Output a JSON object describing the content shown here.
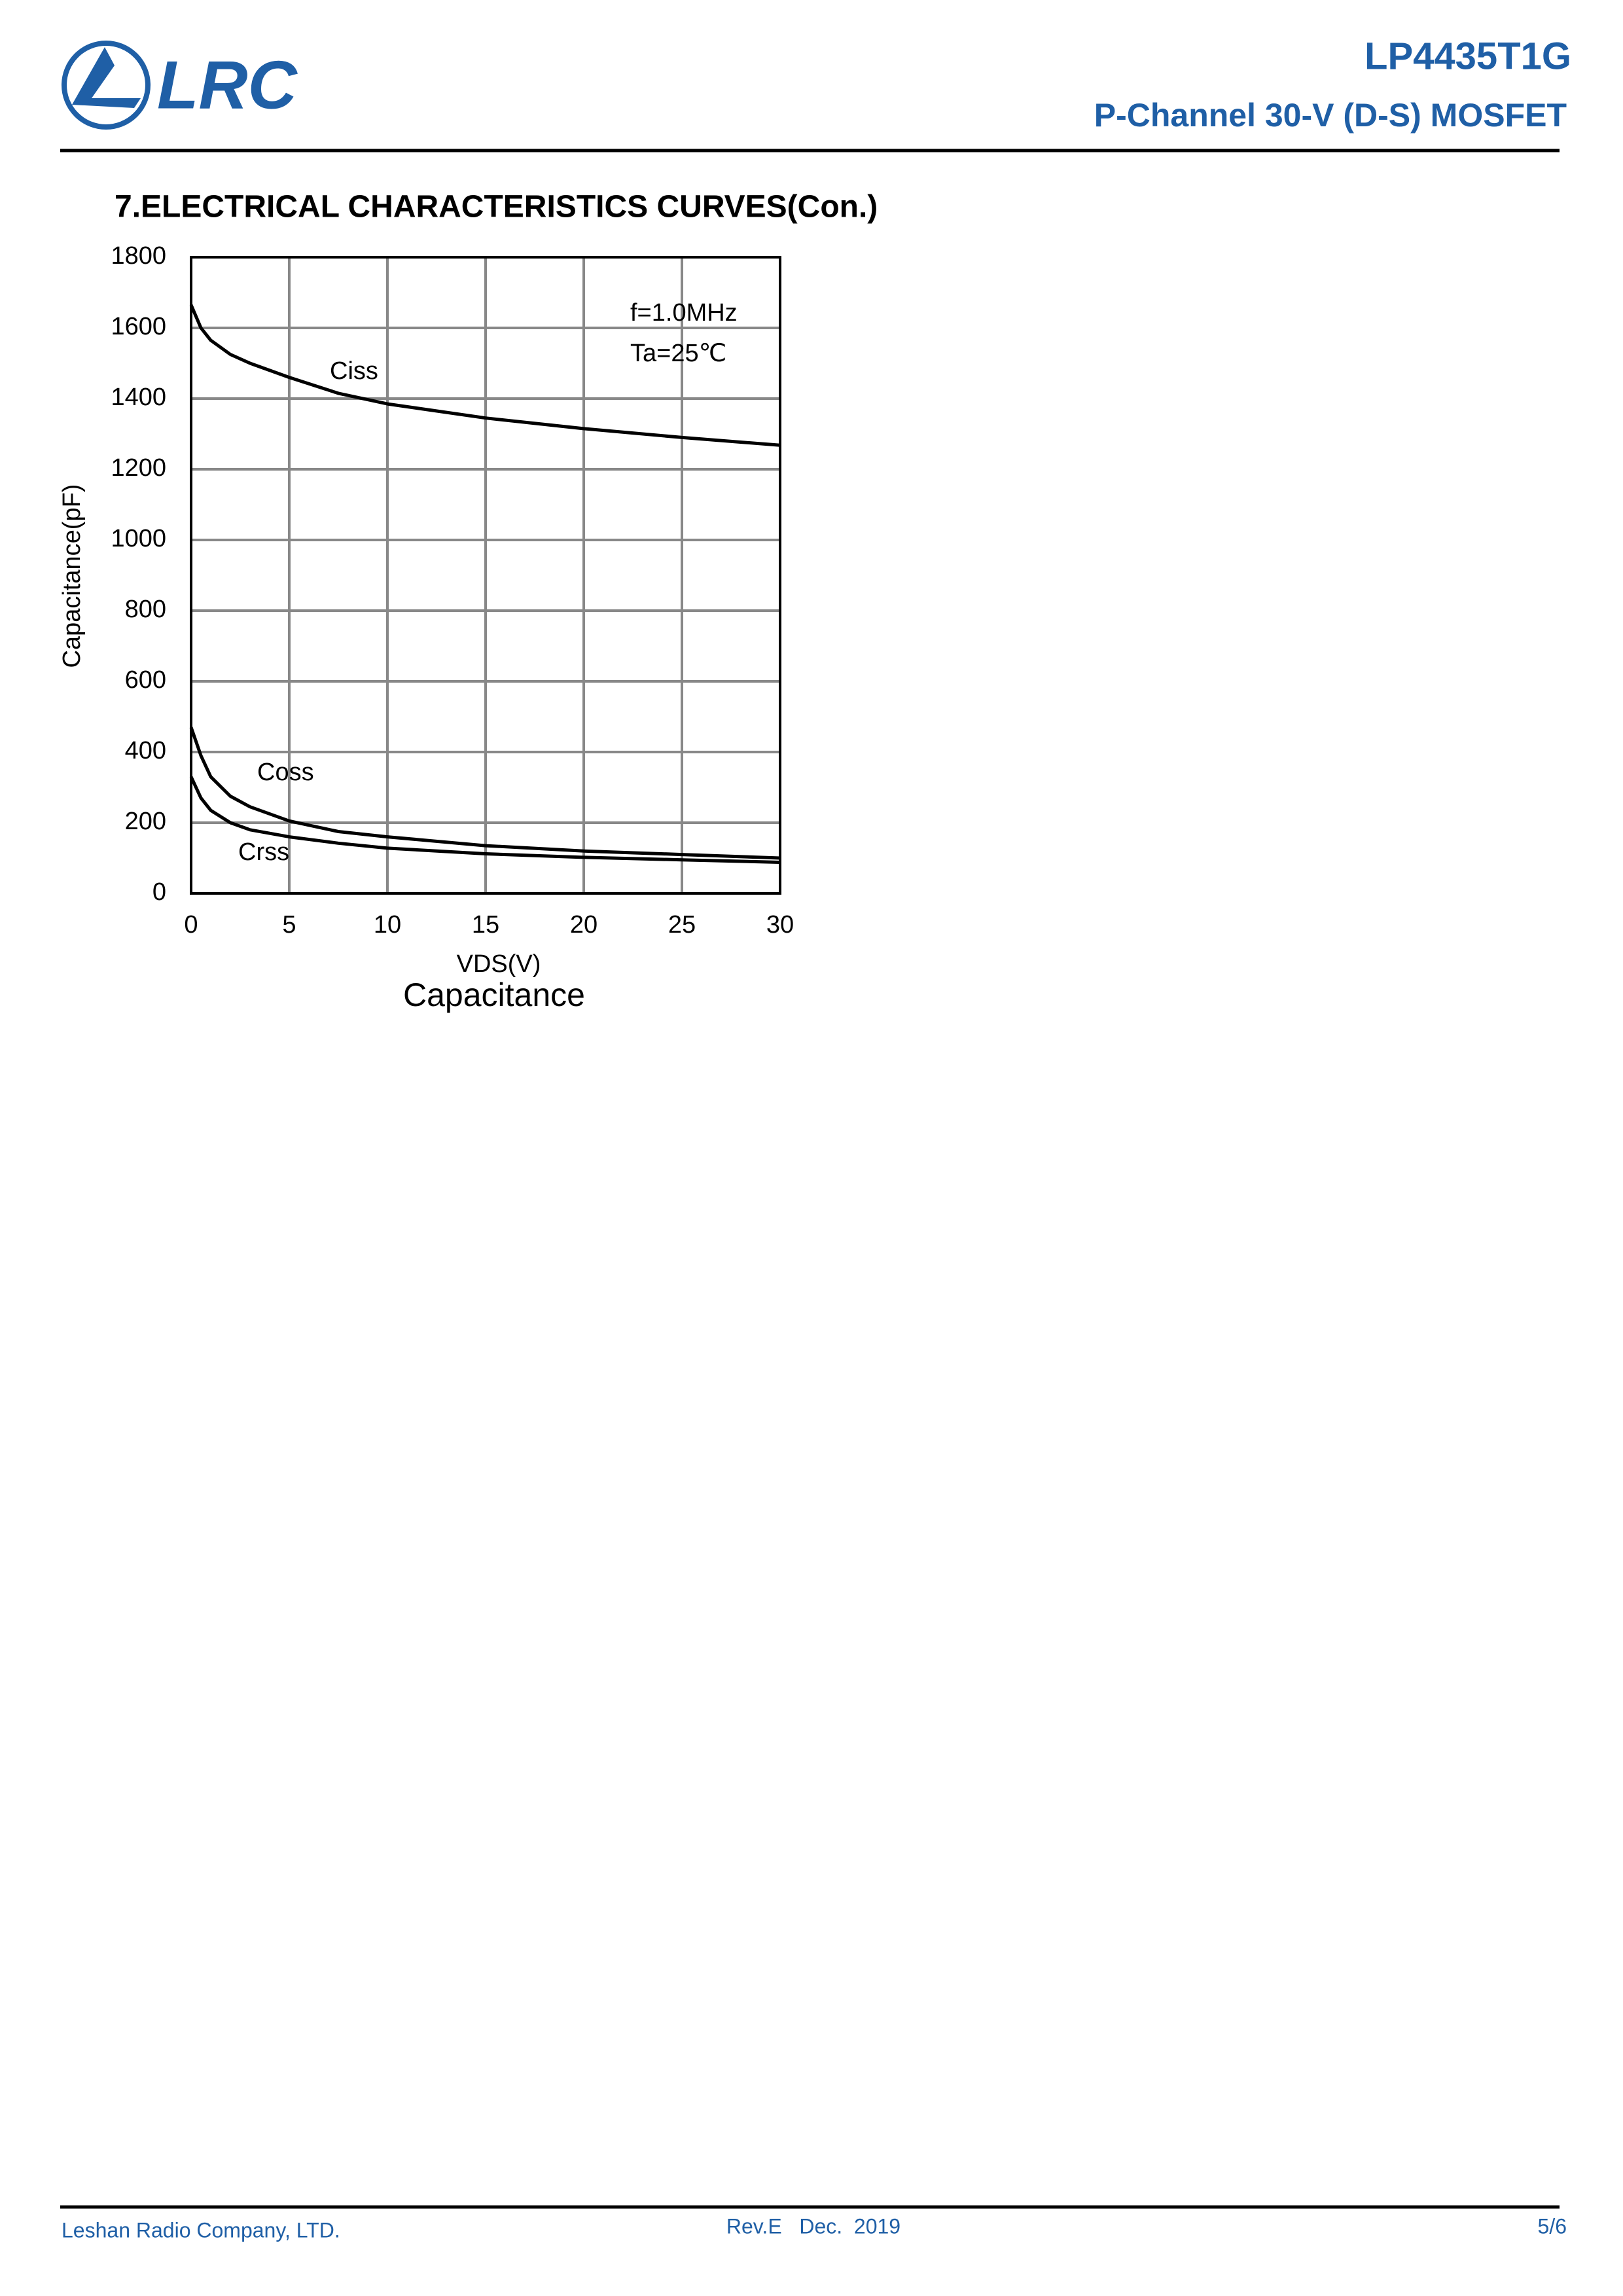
{
  "header": {
    "logo": "LRC",
    "part_number": "LP4435T1G",
    "description": "P-Channel 30-V (D-S) MOSFET"
  },
  "section_title": "7.ELECTRICAL CHARACTERISTICS CURVES(Con.)",
  "chart_data": {
    "type": "line",
    "caption": "Capacitance",
    "x_label": "VDS(V)",
    "y_label": "Capacitance(pF)",
    "annotations": [
      "f=1.0MHz",
      "Ta=25℃"
    ],
    "x": [
      0,
      0.5,
      1,
      2,
      3,
      5,
      7.5,
      10,
      15,
      20,
      25,
      30
    ],
    "series": [
      {
        "name": "Ciss",
        "color": "#000000",
        "values": [
          1665,
          1600,
          1565,
          1525,
          1500,
          1460,
          1415,
          1385,
          1345,
          1315,
          1290,
          1268
        ]
      },
      {
        "name": "Coss",
        "color": "#000000",
        "values": [
          470,
          390,
          330,
          275,
          245,
          205,
          175,
          160,
          135,
          120,
          110,
          100
        ]
      },
      {
        "name": "Crss",
        "color": "#000000",
        "values": [
          330,
          270,
          235,
          200,
          180,
          160,
          142,
          128,
          112,
          102,
          95,
          88
        ]
      }
    ],
    "xlim": [
      0,
      30
    ],
    "xticks": [
      0,
      5,
      10,
      15,
      20,
      25,
      30
    ],
    "ylim": [
      0,
      1800
    ],
    "yticks": [
      0,
      200,
      400,
      600,
      800,
      1000,
      1200,
      1400,
      1600,
      1800
    ],
    "grid": true
  },
  "footer": {
    "company": "Leshan Radio Company, LTD.",
    "revision": "Rev.E   Dec.  2019",
    "page": "5/6"
  }
}
